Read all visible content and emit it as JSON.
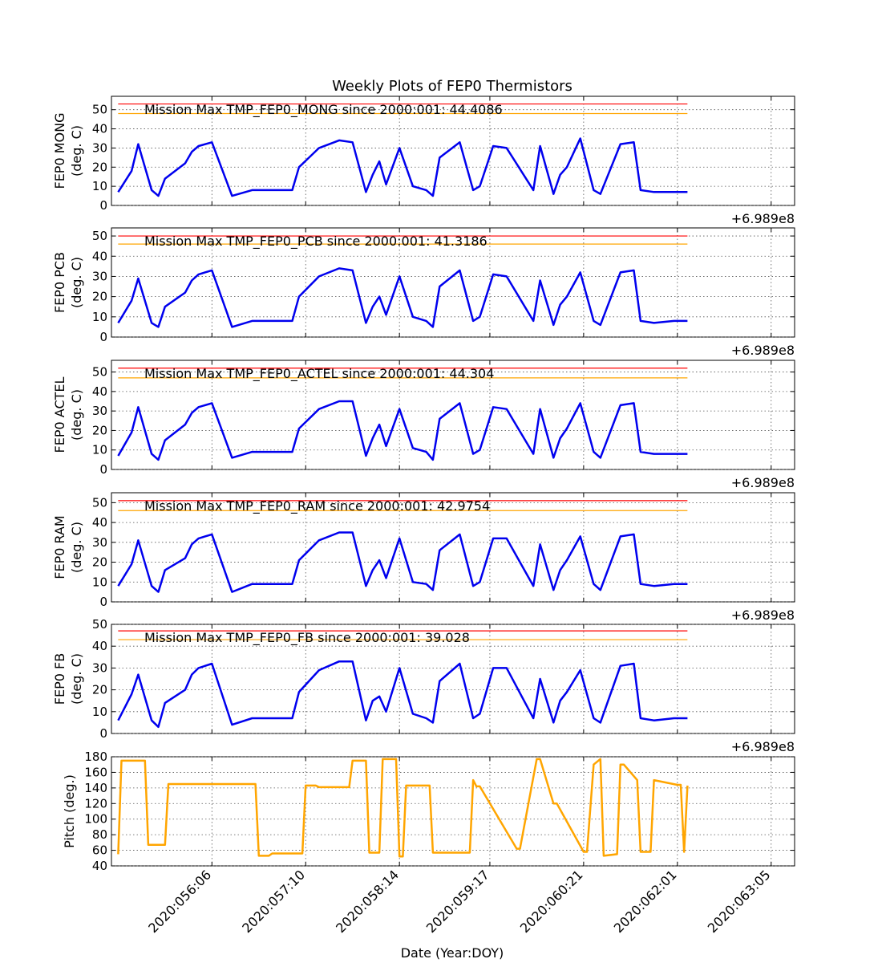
{
  "figure": {
    "title": "Weekly Plots of FEP0 Thermistors",
    "xlabel": "Date (Year:DOY)"
  },
  "colors": {
    "data": "#0000ee",
    "pitch": "#ffa500",
    "red_limit": "#ff0000",
    "yellow_limit": "#ffa500",
    "grid": "#555555"
  },
  "chart_data": [
    {
      "type": "line",
      "ylabel_line1": "FEP0 MONG",
      "ylabel_line2": "(deg. C)",
      "annotation": "Mission Max TMP_FEP0_MONG since 2000:001: 44.4086",
      "offset_text": "+6.989e8",
      "ylim": [
        0,
        57
      ],
      "yticks": [
        0,
        10,
        20,
        30,
        40,
        50
      ],
      "red_limit": 53,
      "yellow_limit": 48,
      "x": [
        "2020:055:02",
        "2020:055:06",
        "2020:055:08",
        "2020:055:12",
        "2020:055:14",
        "2020:055:16",
        "2020:055:22",
        "2020:056:00",
        "2020:056:02",
        "2020:056:06",
        "2020:056:12",
        "2020:056:18",
        "2020:056:20",
        "2020:057:00",
        "2020:057:06",
        "2020:057:08",
        "2020:057:14",
        "2020:057:20",
        "2020:058:00",
        "2020:058:04",
        "2020:058:06",
        "2020:058:08",
        "2020:058:10",
        "2020:058:14",
        "2020:058:18",
        "2020:058:22",
        "2020:059:00",
        "2020:059:02",
        "2020:059:08",
        "2020:059:12",
        "2020:059:14",
        "2020:059:18",
        "2020:059:22",
        "2020:060:06",
        "2020:060:08",
        "2020:060:12",
        "2020:060:14",
        "2020:060:16",
        "2020:060:20",
        "2020:061:00",
        "2020:061:02",
        "2020:061:08",
        "2020:061:12",
        "2020:061:14",
        "2020:061:18",
        "2020:062:00",
        "2020:062:04"
      ],
      "values": [
        7,
        18,
        32,
        8,
        5,
        14,
        22,
        28,
        31,
        33,
        5,
        8,
        8,
        8,
        8,
        20,
        30,
        34,
        33,
        7,
        16,
        23,
        11,
        30,
        10,
        8,
        5,
        25,
        33,
        8,
        10,
        31,
        30,
        8,
        31,
        6,
        16,
        20,
        35,
        8,
        6,
        32,
        33,
        8,
        7,
        7,
        7
      ]
    },
    {
      "type": "line",
      "ylabel_line1": "FEP0 PCB",
      "ylabel_line2": "(deg. C)",
      "annotation": "Mission Max TMP_FEP0_PCB since 2000:001: 41.3186",
      "offset_text": "+6.989e8",
      "ylim": [
        0,
        54
      ],
      "yticks": [
        0,
        10,
        20,
        30,
        40,
        50
      ],
      "red_limit": 50,
      "yellow_limit": 46,
      "x": [
        "2020:055:02",
        "2020:055:06",
        "2020:055:08",
        "2020:055:12",
        "2020:055:14",
        "2020:055:16",
        "2020:055:22",
        "2020:056:00",
        "2020:056:02",
        "2020:056:06",
        "2020:056:12",
        "2020:056:18",
        "2020:056:20",
        "2020:057:00",
        "2020:057:06",
        "2020:057:08",
        "2020:057:14",
        "2020:057:20",
        "2020:058:00",
        "2020:058:04",
        "2020:058:06",
        "2020:058:08",
        "2020:058:10",
        "2020:058:14",
        "2020:058:18",
        "2020:058:22",
        "2020:059:00",
        "2020:059:02",
        "2020:059:08",
        "2020:059:12",
        "2020:059:14",
        "2020:059:18",
        "2020:059:22",
        "2020:060:06",
        "2020:060:08",
        "2020:060:12",
        "2020:060:14",
        "2020:060:16",
        "2020:060:20",
        "2020:061:00",
        "2020:061:02",
        "2020:061:08",
        "2020:061:12",
        "2020:061:14",
        "2020:061:18",
        "2020:062:00",
        "2020:062:04"
      ],
      "values": [
        7,
        18,
        29,
        7,
        5,
        15,
        22,
        28,
        31,
        33,
        5,
        8,
        8,
        8,
        8,
        20,
        30,
        34,
        33,
        7,
        15,
        20,
        11,
        30,
        10,
        8,
        5,
        25,
        33,
        8,
        10,
        31,
        30,
        8,
        28,
        6,
        16,
        20,
        32,
        8,
        6,
        32,
        33,
        8,
        7,
        8,
        8
      ]
    },
    {
      "type": "line",
      "ylabel_line1": "FEP0 ACTEL",
      "ylabel_line2": "(deg. C)",
      "annotation": "Mission Max TMP_FEP0_ACTEL since 2000:001: 44.304",
      "offset_text": "+6.989e8",
      "ylim": [
        0,
        56
      ],
      "yticks": [
        0,
        10,
        20,
        30,
        40,
        50
      ],
      "red_limit": 52,
      "yellow_limit": 47,
      "x": [
        "2020:055:02",
        "2020:055:06",
        "2020:055:08",
        "2020:055:12",
        "2020:055:14",
        "2020:055:16",
        "2020:055:22",
        "2020:056:00",
        "2020:056:02",
        "2020:056:06",
        "2020:056:12",
        "2020:056:18",
        "2020:056:20",
        "2020:057:00",
        "2020:057:06",
        "2020:057:08",
        "2020:057:14",
        "2020:057:20",
        "2020:058:00",
        "2020:058:04",
        "2020:058:06",
        "2020:058:08",
        "2020:058:10",
        "2020:058:14",
        "2020:058:18",
        "2020:058:22",
        "2020:059:00",
        "2020:059:02",
        "2020:059:08",
        "2020:059:12",
        "2020:059:14",
        "2020:059:18",
        "2020:059:22",
        "2020:060:06",
        "2020:060:08",
        "2020:060:12",
        "2020:060:14",
        "2020:060:16",
        "2020:060:20",
        "2020:061:00",
        "2020:061:02",
        "2020:061:08",
        "2020:061:12",
        "2020:061:14",
        "2020:061:18",
        "2020:062:00",
        "2020:062:04"
      ],
      "values": [
        7,
        19,
        32,
        8,
        5,
        15,
        23,
        29,
        32,
        34,
        6,
        9,
        9,
        9,
        9,
        21,
        31,
        35,
        35,
        7,
        16,
        23,
        12,
        31,
        11,
        9,
        5,
        26,
        34,
        8,
        10,
        32,
        31,
        8,
        31,
        6,
        16,
        21,
        34,
        9,
        6,
        33,
        34,
        9,
        8,
        8,
        8
      ]
    },
    {
      "type": "line",
      "ylabel_line1": "FEP0 RAM",
      "ylabel_line2": "(deg. C)",
      "annotation": "Mission Max TMP_FEP0_RAM since 2000:001: 42.9754",
      "offset_text": "+6.989e8",
      "ylim": [
        0,
        55
      ],
      "yticks": [
        0,
        10,
        20,
        30,
        40,
        50
      ],
      "red_limit": 51,
      "yellow_limit": 46,
      "x": [
        "2020:055:02",
        "2020:055:06",
        "2020:055:08",
        "2020:055:12",
        "2020:055:14",
        "2020:055:16",
        "2020:055:22",
        "2020:056:00",
        "2020:056:02",
        "2020:056:06",
        "2020:056:12",
        "2020:056:18",
        "2020:056:20",
        "2020:057:00",
        "2020:057:06",
        "2020:057:08",
        "2020:057:14",
        "2020:057:20",
        "2020:058:00",
        "2020:058:04",
        "2020:058:06",
        "2020:058:08",
        "2020:058:10",
        "2020:058:14",
        "2020:058:18",
        "2020:058:22",
        "2020:059:00",
        "2020:059:02",
        "2020:059:08",
        "2020:059:12",
        "2020:059:14",
        "2020:059:18",
        "2020:059:22",
        "2020:060:06",
        "2020:060:08",
        "2020:060:12",
        "2020:060:14",
        "2020:060:16",
        "2020:060:20",
        "2020:061:00",
        "2020:061:02",
        "2020:061:08",
        "2020:061:12",
        "2020:061:14",
        "2020:061:18",
        "2020:062:00",
        "2020:062:04"
      ],
      "values": [
        8,
        19,
        31,
        8,
        5,
        16,
        22,
        29,
        32,
        34,
        5,
        9,
        9,
        9,
        9,
        21,
        31,
        35,
        35,
        8,
        16,
        21,
        12,
        32,
        10,
        9,
        6,
        26,
        34,
        8,
        10,
        32,
        32,
        8,
        29,
        6,
        16,
        21,
        33,
        9,
        6,
        33,
        34,
        9,
        8,
        9,
        9
      ]
    },
    {
      "type": "line",
      "ylabel_line1": "FEP0 FB",
      "ylabel_line2": "(deg. C)",
      "annotation": "Mission Max TMP_FEP0_FB since 2000:001: 39.028",
      "offset_text": "+6.989e8",
      "ylim": [
        0,
        50
      ],
      "yticks": [
        0,
        10,
        20,
        30,
        40,
        50
      ],
      "red_limit": 47,
      "yellow_limit": 43,
      "x": [
        "2020:055:02",
        "2020:055:06",
        "2020:055:08",
        "2020:055:12",
        "2020:055:14",
        "2020:055:16",
        "2020:055:22",
        "2020:056:00",
        "2020:056:02",
        "2020:056:06",
        "2020:056:12",
        "2020:056:18",
        "2020:056:20",
        "2020:057:00",
        "2020:057:06",
        "2020:057:08",
        "2020:057:14",
        "2020:057:20",
        "2020:058:00",
        "2020:058:04",
        "2020:058:06",
        "2020:058:08",
        "2020:058:10",
        "2020:058:14",
        "2020:058:18",
        "2020:058:22",
        "2020:059:00",
        "2020:059:02",
        "2020:059:08",
        "2020:059:12",
        "2020:059:14",
        "2020:059:18",
        "2020:059:22",
        "2020:060:06",
        "2020:060:08",
        "2020:060:12",
        "2020:060:14",
        "2020:060:16",
        "2020:060:20",
        "2020:061:00",
        "2020:061:02",
        "2020:061:08",
        "2020:061:12",
        "2020:061:14",
        "2020:061:18",
        "2020:062:00",
        "2020:062:04"
      ],
      "values": [
        6,
        18,
        27,
        6,
        3,
        14,
        20,
        27,
        30,
        32,
        4,
        7,
        7,
        7,
        7,
        19,
        29,
        33,
        33,
        6,
        15,
        17,
        10,
        30,
        9,
        7,
        5,
        24,
        32,
        7,
        9,
        30,
        30,
        7,
        25,
        5,
        15,
        19,
        29,
        7,
        5,
        31,
        32,
        7,
        6,
        7,
        7
      ]
    },
    {
      "type": "line",
      "ylabel_line1": "Pitch (deg.)",
      "ylabel_line2": "",
      "annotation": "",
      "offset_text": "",
      "ylim": [
        40,
        180
      ],
      "yticks": [
        40,
        60,
        80,
        100,
        120,
        140,
        160,
        180
      ],
      "x": [
        "2020:055:02",
        "2020:055:03",
        "2020:055:10",
        "2020:055:11",
        "2020:055:16",
        "2020:055:17",
        "2020:056:19",
        "2020:056:20",
        "2020:056:23",
        "2020:057:00",
        "2020:057:09",
        "2020:057:10",
        "2020:057:13",
        "2020:057:14",
        "2020:057:23",
        "2020:058:00",
        "2020:058:04",
        "2020:058:05",
        "2020:058:08",
        "2020:058:09",
        "2020:058:13",
        "2020:058:14",
        "2020:058:15",
        "2020:058:16",
        "2020:058:23",
        "2020:059:00",
        "2020:059:11",
        "2020:059:12",
        "2020:059:13",
        "2020:059:14",
        "2020:060:01",
        "2020:060:02",
        "2020:060:07",
        "2020:060:08",
        "2020:060:12",
        "2020:060:13",
        "2020:060:21",
        "2020:060:22",
        "2020:061:00",
        "2020:061:02",
        "2020:061:03",
        "2020:061:07",
        "2020:061:08",
        "2020:061:09",
        "2020:061:13",
        "2020:061:14",
        "2020:061:17",
        "2020:061:18",
        "2020:062:01",
        "2020:062:02",
        "2020:062:03",
        "2020:062:04"
      ],
      "values": [
        55,
        175,
        175,
        67,
        67,
        145,
        145,
        53,
        53,
        56,
        56,
        143,
        143,
        141,
        141,
        175,
        175,
        57,
        57,
        177,
        177,
        52,
        52,
        143,
        143,
        57,
        57,
        150,
        142,
        142,
        62,
        62,
        177,
        177,
        120,
        120,
        58,
        58,
        170,
        177,
        53,
        55,
        170,
        170,
        150,
        58,
        58,
        150,
        144,
        144,
        58,
        143
      ]
    }
  ],
  "x_axis": {
    "range": [
      "2020:055:00",
      "2020:063:12"
    ],
    "ticks": [
      "2020:056:06",
      "2020:057:10",
      "2020:058:14",
      "2020:059:17",
      "2020:060:21",
      "2020:062:01",
      "2020:063:05"
    ]
  }
}
